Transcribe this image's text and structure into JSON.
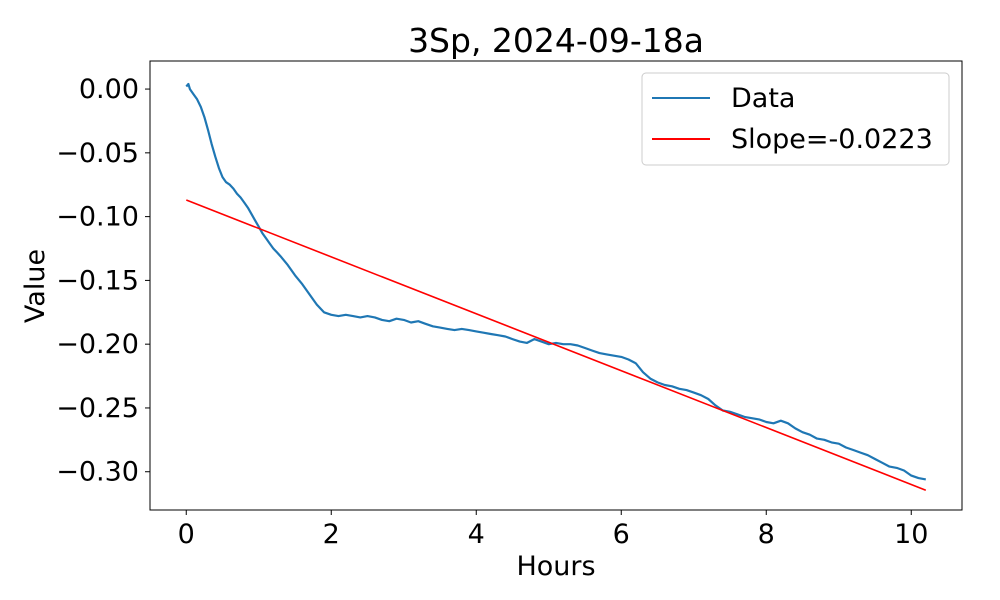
{
  "chart_data": {
    "type": "line",
    "title": "3Sp, 2024-09-18a",
    "xlabel": "Hours",
    "ylabel": "Value",
    "xlim": [
      -0.5,
      10.7
    ],
    "ylim": [
      -0.33,
      0.022
    ],
    "xticks": [
      0,
      2,
      4,
      6,
      8,
      10
    ],
    "xtick_labels": [
      "0",
      "2",
      "4",
      "6",
      "8",
      "10"
    ],
    "yticks": [
      0.0,
      -0.05,
      -0.1,
      -0.15,
      -0.2,
      -0.25,
      -0.3
    ],
    "ytick_labels": [
      "0.00",
      "−0.05",
      "−0.10",
      "−0.15",
      "−0.20",
      "−0.25",
      "−0.30"
    ],
    "grid": false,
    "legend_position": "top-right",
    "series": [
      {
        "name": "Data",
        "color": "#1f77b4",
        "x": [
          0.0,
          0.03,
          0.05,
          0.1,
          0.15,
          0.2,
          0.25,
          0.3,
          0.35,
          0.4,
          0.45,
          0.5,
          0.55,
          0.6,
          0.65,
          0.7,
          0.75,
          0.8,
          0.85,
          0.9,
          0.95,
          1.0,
          1.05,
          1.1,
          1.15,
          1.2,
          1.25,
          1.3,
          1.4,
          1.5,
          1.6,
          1.7,
          1.8,
          1.9,
          2.0,
          2.1,
          2.2,
          2.3,
          2.4,
          2.5,
          2.6,
          2.7,
          2.8,
          2.9,
          3.0,
          3.1,
          3.2,
          3.3,
          3.4,
          3.5,
          3.6,
          3.7,
          3.8,
          3.9,
          4.0,
          4.1,
          4.2,
          4.3,
          4.4,
          4.5,
          4.6,
          4.7,
          4.8,
          4.9,
          5.0,
          5.1,
          5.2,
          5.3,
          5.4,
          5.5,
          5.6,
          5.7,
          5.8,
          5.9,
          6.0,
          6.1,
          6.2,
          6.3,
          6.4,
          6.5,
          6.6,
          6.7,
          6.8,
          6.9,
          7.0,
          7.1,
          7.2,
          7.3,
          7.4,
          7.5,
          7.6,
          7.7,
          7.8,
          7.9,
          8.0,
          8.1,
          8.2,
          8.3,
          8.4,
          8.5,
          8.6,
          8.7,
          8.8,
          8.9,
          9.0,
          9.1,
          9.2,
          9.3,
          9.4,
          9.5,
          9.6,
          9.7,
          9.8,
          9.9,
          10.0,
          10.1,
          10.2
        ],
        "y": [
          0.002,
          0.004,
          0.0,
          -0.004,
          -0.008,
          -0.014,
          -0.022,
          -0.032,
          -0.043,
          -0.053,
          -0.062,
          -0.069,
          -0.073,
          -0.075,
          -0.078,
          -0.082,
          -0.085,
          -0.089,
          -0.093,
          -0.098,
          -0.103,
          -0.108,
          -0.113,
          -0.117,
          -0.121,
          -0.125,
          -0.128,
          -0.131,
          -0.138,
          -0.146,
          -0.153,
          -0.161,
          -0.169,
          -0.175,
          -0.177,
          -0.178,
          -0.177,
          -0.178,
          -0.179,
          -0.178,
          -0.179,
          -0.181,
          -0.182,
          -0.18,
          -0.181,
          -0.183,
          -0.182,
          -0.184,
          -0.186,
          -0.187,
          -0.188,
          -0.189,
          -0.188,
          -0.189,
          -0.19,
          -0.191,
          -0.192,
          -0.193,
          -0.194,
          -0.196,
          -0.198,
          -0.199,
          -0.196,
          -0.198,
          -0.2,
          -0.199,
          -0.2,
          -0.2,
          -0.201,
          -0.203,
          -0.205,
          -0.207,
          -0.208,
          -0.209,
          -0.21,
          -0.212,
          -0.215,
          -0.222,
          -0.227,
          -0.23,
          -0.232,
          -0.233,
          -0.235,
          -0.236,
          -0.238,
          -0.24,
          -0.243,
          -0.248,
          -0.252,
          -0.253,
          -0.255,
          -0.257,
          -0.258,
          -0.259,
          -0.261,
          -0.262,
          -0.26,
          -0.262,
          -0.266,
          -0.269,
          -0.271,
          -0.274,
          -0.275,
          -0.277,
          -0.278,
          -0.281,
          -0.283,
          -0.285,
          -0.287,
          -0.29,
          -0.293,
          -0.296,
          -0.297,
          -0.299,
          -0.303,
          -0.305,
          -0.306
        ]
      },
      {
        "name": "Slope=-0.0223",
        "color": "#ff0000",
        "x": [
          0.0,
          10.2
        ],
        "y": [
          -0.087,
          -0.3145
        ]
      }
    ]
  }
}
